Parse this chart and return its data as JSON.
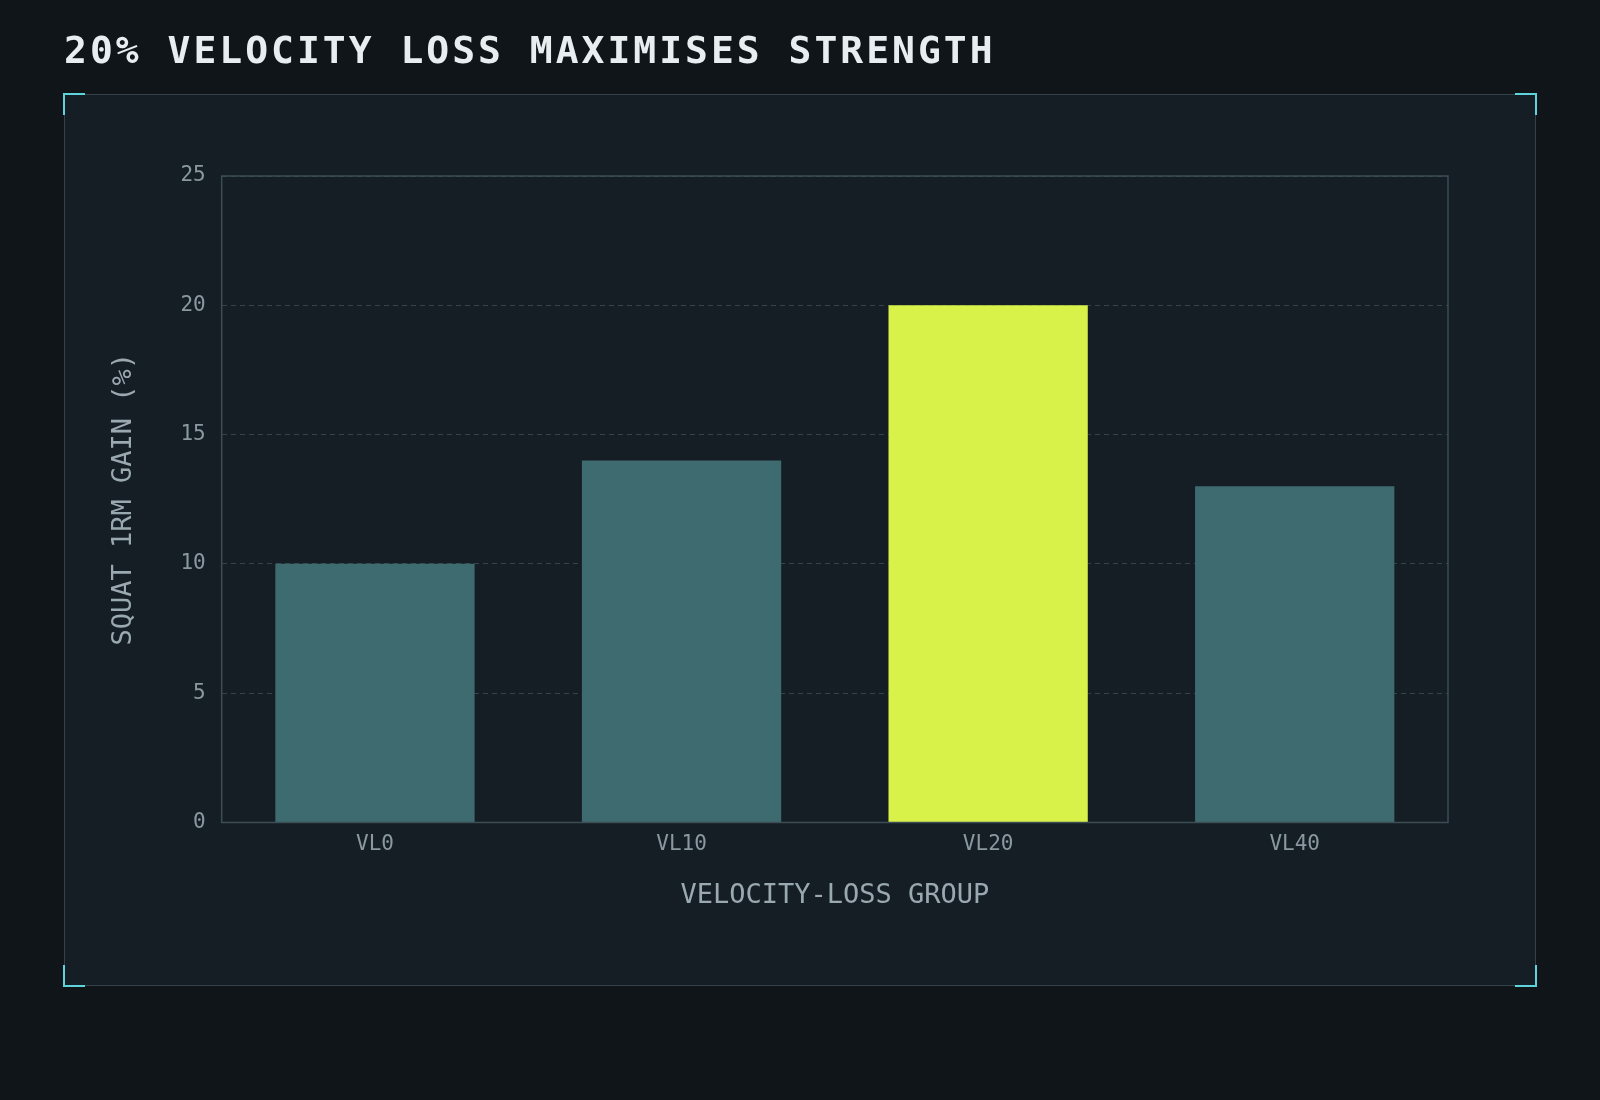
{
  "chart_data": {
    "type": "bar",
    "title": "20% VELOCITY LOSS MAXIMISES STRENGTH",
    "xlabel": "VELOCITY-LOSS GROUP",
    "ylabel": "SQUAT 1RM GAIN (%)",
    "categories": [
      "VL0",
      "VL10",
      "VL20",
      "VL40"
    ],
    "values": [
      10,
      14,
      20,
      13
    ],
    "colors": [
      "#3e6b70",
      "#3e6b70",
      "#d9f24a",
      "#3e6b70"
    ],
    "ylim": [
      0,
      25
    ],
    "yticks": [
      0,
      5,
      10,
      15,
      20,
      25
    ],
    "grid": "y"
  }
}
